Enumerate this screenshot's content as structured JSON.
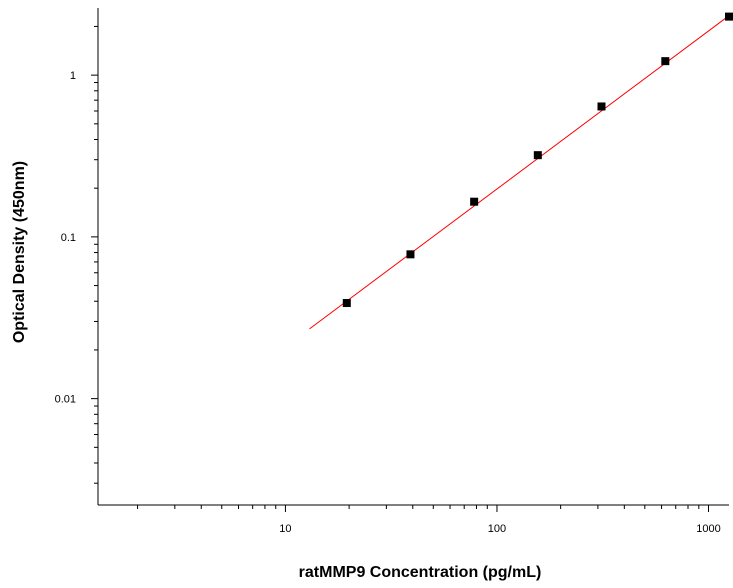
{
  "chart_data": {
    "type": "scatter",
    "title": "",
    "xlabel": "ratMMP9 Concentration (pg/mL)",
    "ylabel": "Optical Density (450nm)",
    "x_scale": "log",
    "y_scale": "log",
    "xlim": [
      1.3,
      1250
    ],
    "ylim": [
      0.0022,
      2.6
    ],
    "x_ticks": [
      {
        "value": 10,
        "label": "10"
      },
      {
        "value": 100,
        "label": "100"
      },
      {
        "value": 1000,
        "label": "1000"
      }
    ],
    "y_ticks": [
      {
        "value": 0.01,
        "label": "0.01"
      },
      {
        "value": 0.1,
        "label": "0.1"
      },
      {
        "value": 1,
        "label": "1"
      }
    ],
    "grid": false,
    "legend": "none",
    "series": [
      {
        "x": [
          19.5,
          39,
          78,
          156,
          312,
          625,
          1250
        ],
        "y": [
          0.039,
          0.078,
          0.165,
          0.32,
          0.64,
          1.22,
          2.3
        ],
        "marker": "square",
        "color": "#000000"
      }
    ],
    "fit_line": {
      "x": [
        13,
        1250
      ],
      "y": [
        0.027,
        2.33
      ],
      "color": "#ff0000"
    }
  }
}
